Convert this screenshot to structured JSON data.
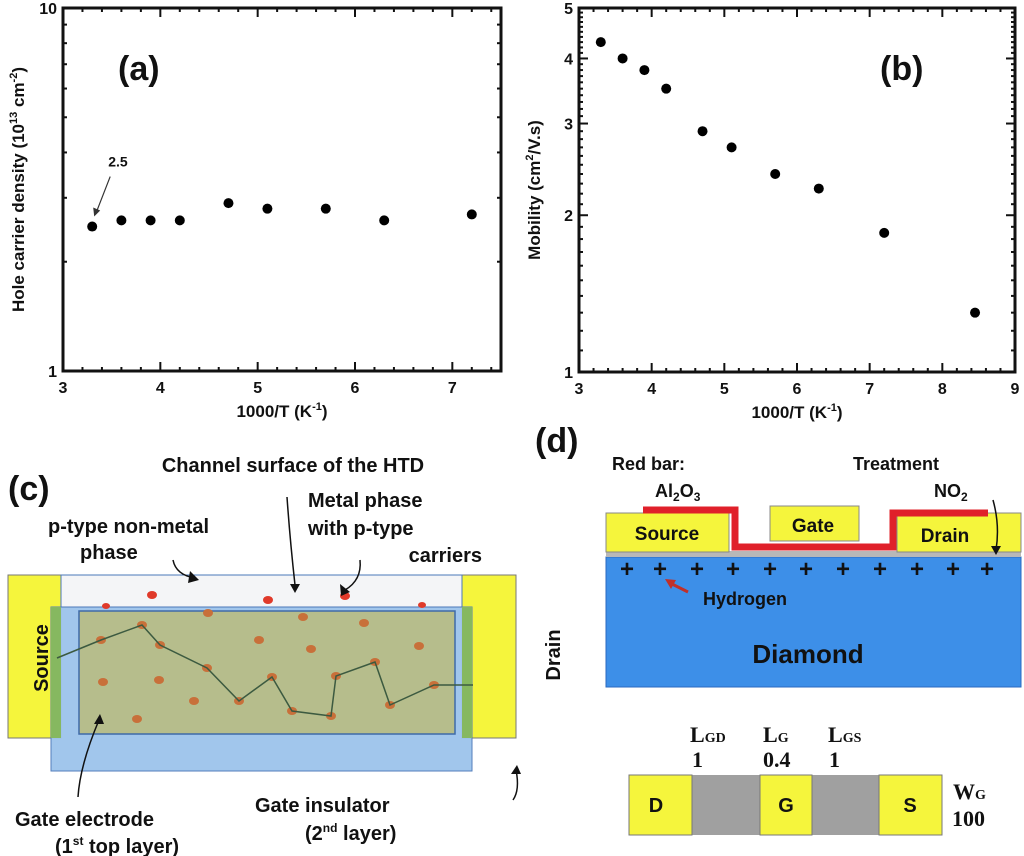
{
  "chart_data": [
    {
      "type": "scatter",
      "panel_label": "(a)",
      "xlabel": "1000/T (K",
      "xlabel_sup": "-1",
      "xlabel_end": ")",
      "ylabel": "Hole carrier density (10",
      "ylabel_sup": "13",
      "ylabel_mid": " cm",
      "ylabel_sup2": "-2",
      "ylabel_end": ")",
      "xlim": [
        3,
        7.5
      ],
      "ylim": [
        1,
        10
      ],
      "yscale": "log",
      "xticks": [
        3,
        4,
        5,
        6,
        7
      ],
      "yticks": [
        1,
        10
      ],
      "grid": false,
      "annotation": "2.5",
      "x": [
        3.3,
        3.6,
        3.9,
        4.2,
        4.7,
        5.1,
        5.7,
        6.3,
        7.2
      ],
      "y": [
        2.5,
        2.6,
        2.6,
        2.6,
        2.9,
        2.8,
        2.8,
        2.6,
        2.7
      ]
    },
    {
      "type": "scatter",
      "panel_label": "(b)",
      "xlabel": "1000/T (K",
      "xlabel_sup": "-1",
      "xlabel_end": ")",
      "ylabel": "Mobility (cm",
      "ylabel_sup": "2",
      "ylabel_end": "/V.s)",
      "xlim": [
        3,
        9
      ],
      "ylim": [
        1,
        5
      ],
      "yscale": "log",
      "xticks": [
        3,
        4,
        5,
        6,
        7,
        8,
        9
      ],
      "yticks": [
        1,
        2,
        3,
        4,
        5
      ],
      "grid": false,
      "x": [
        3.3,
        3.6,
        3.9,
        4.2,
        4.7,
        5.1,
        5.7,
        6.3,
        7.2,
        8.45
      ],
      "y": [
        4.3,
        4.0,
        3.8,
        3.5,
        2.9,
        2.7,
        2.4,
        2.25,
        1.85,
        1.3
      ]
    }
  ],
  "panel_c": {
    "label": "(c)",
    "title": "Channel surface of the HTD",
    "metal_phase": [
      "Metal phase",
      "with p-type",
      "carriers"
    ],
    "nonmetal_phase": [
      "p-type non-metal",
      "phase"
    ],
    "source": "Source",
    "drain": "Drain",
    "gate_electrode": "Gate electrode",
    "gate_electrode_sub_a": "(1",
    "gate_electrode_sup": "st",
    "gate_electrode_sub_b": " top layer)",
    "gate_insulator": "Gate insulator",
    "gate_insulator_sub_a": "(2",
    "gate_insulator_sup": "nd",
    "gate_insulator_sub_b": " layer)",
    "colors": {
      "electrode": "#f5f53c",
      "insulator": "#9cc3ec",
      "channel": "#b6bd8c",
      "carrier": "#e03a2a",
      "dot": "#c8703a"
    }
  },
  "panel_d": {
    "label": "(d)",
    "red_bar": "Red bar:",
    "al": "Al",
    "al_sub": "2",
    "al_o": "O",
    "al_sub2": "3",
    "treatment": "Treatment",
    "no": "NO",
    "no_sub": "2",
    "source": "Source",
    "gate": "Gate",
    "drain": "Drain",
    "hydrogen": "Hydrogen",
    "diamond": "Diamond",
    "plus": "+",
    "dims": [
      {
        "name": "L",
        "sub": "GD",
        "value": "1"
      },
      {
        "name": "L",
        "sub": "G",
        "value": "0.4"
      },
      {
        "name": "L",
        "sub": "GS",
        "value": "1"
      }
    ],
    "width_name": "W",
    "width_sub": "G",
    "width_value": "100",
    "layout_labels": [
      "D",
      "G",
      "S"
    ],
    "colors": {
      "diamond": "#3d8fe8",
      "metal": "#f5f53c",
      "al2o3": "#e0202a",
      "gap": "#a0a0a0"
    }
  }
}
